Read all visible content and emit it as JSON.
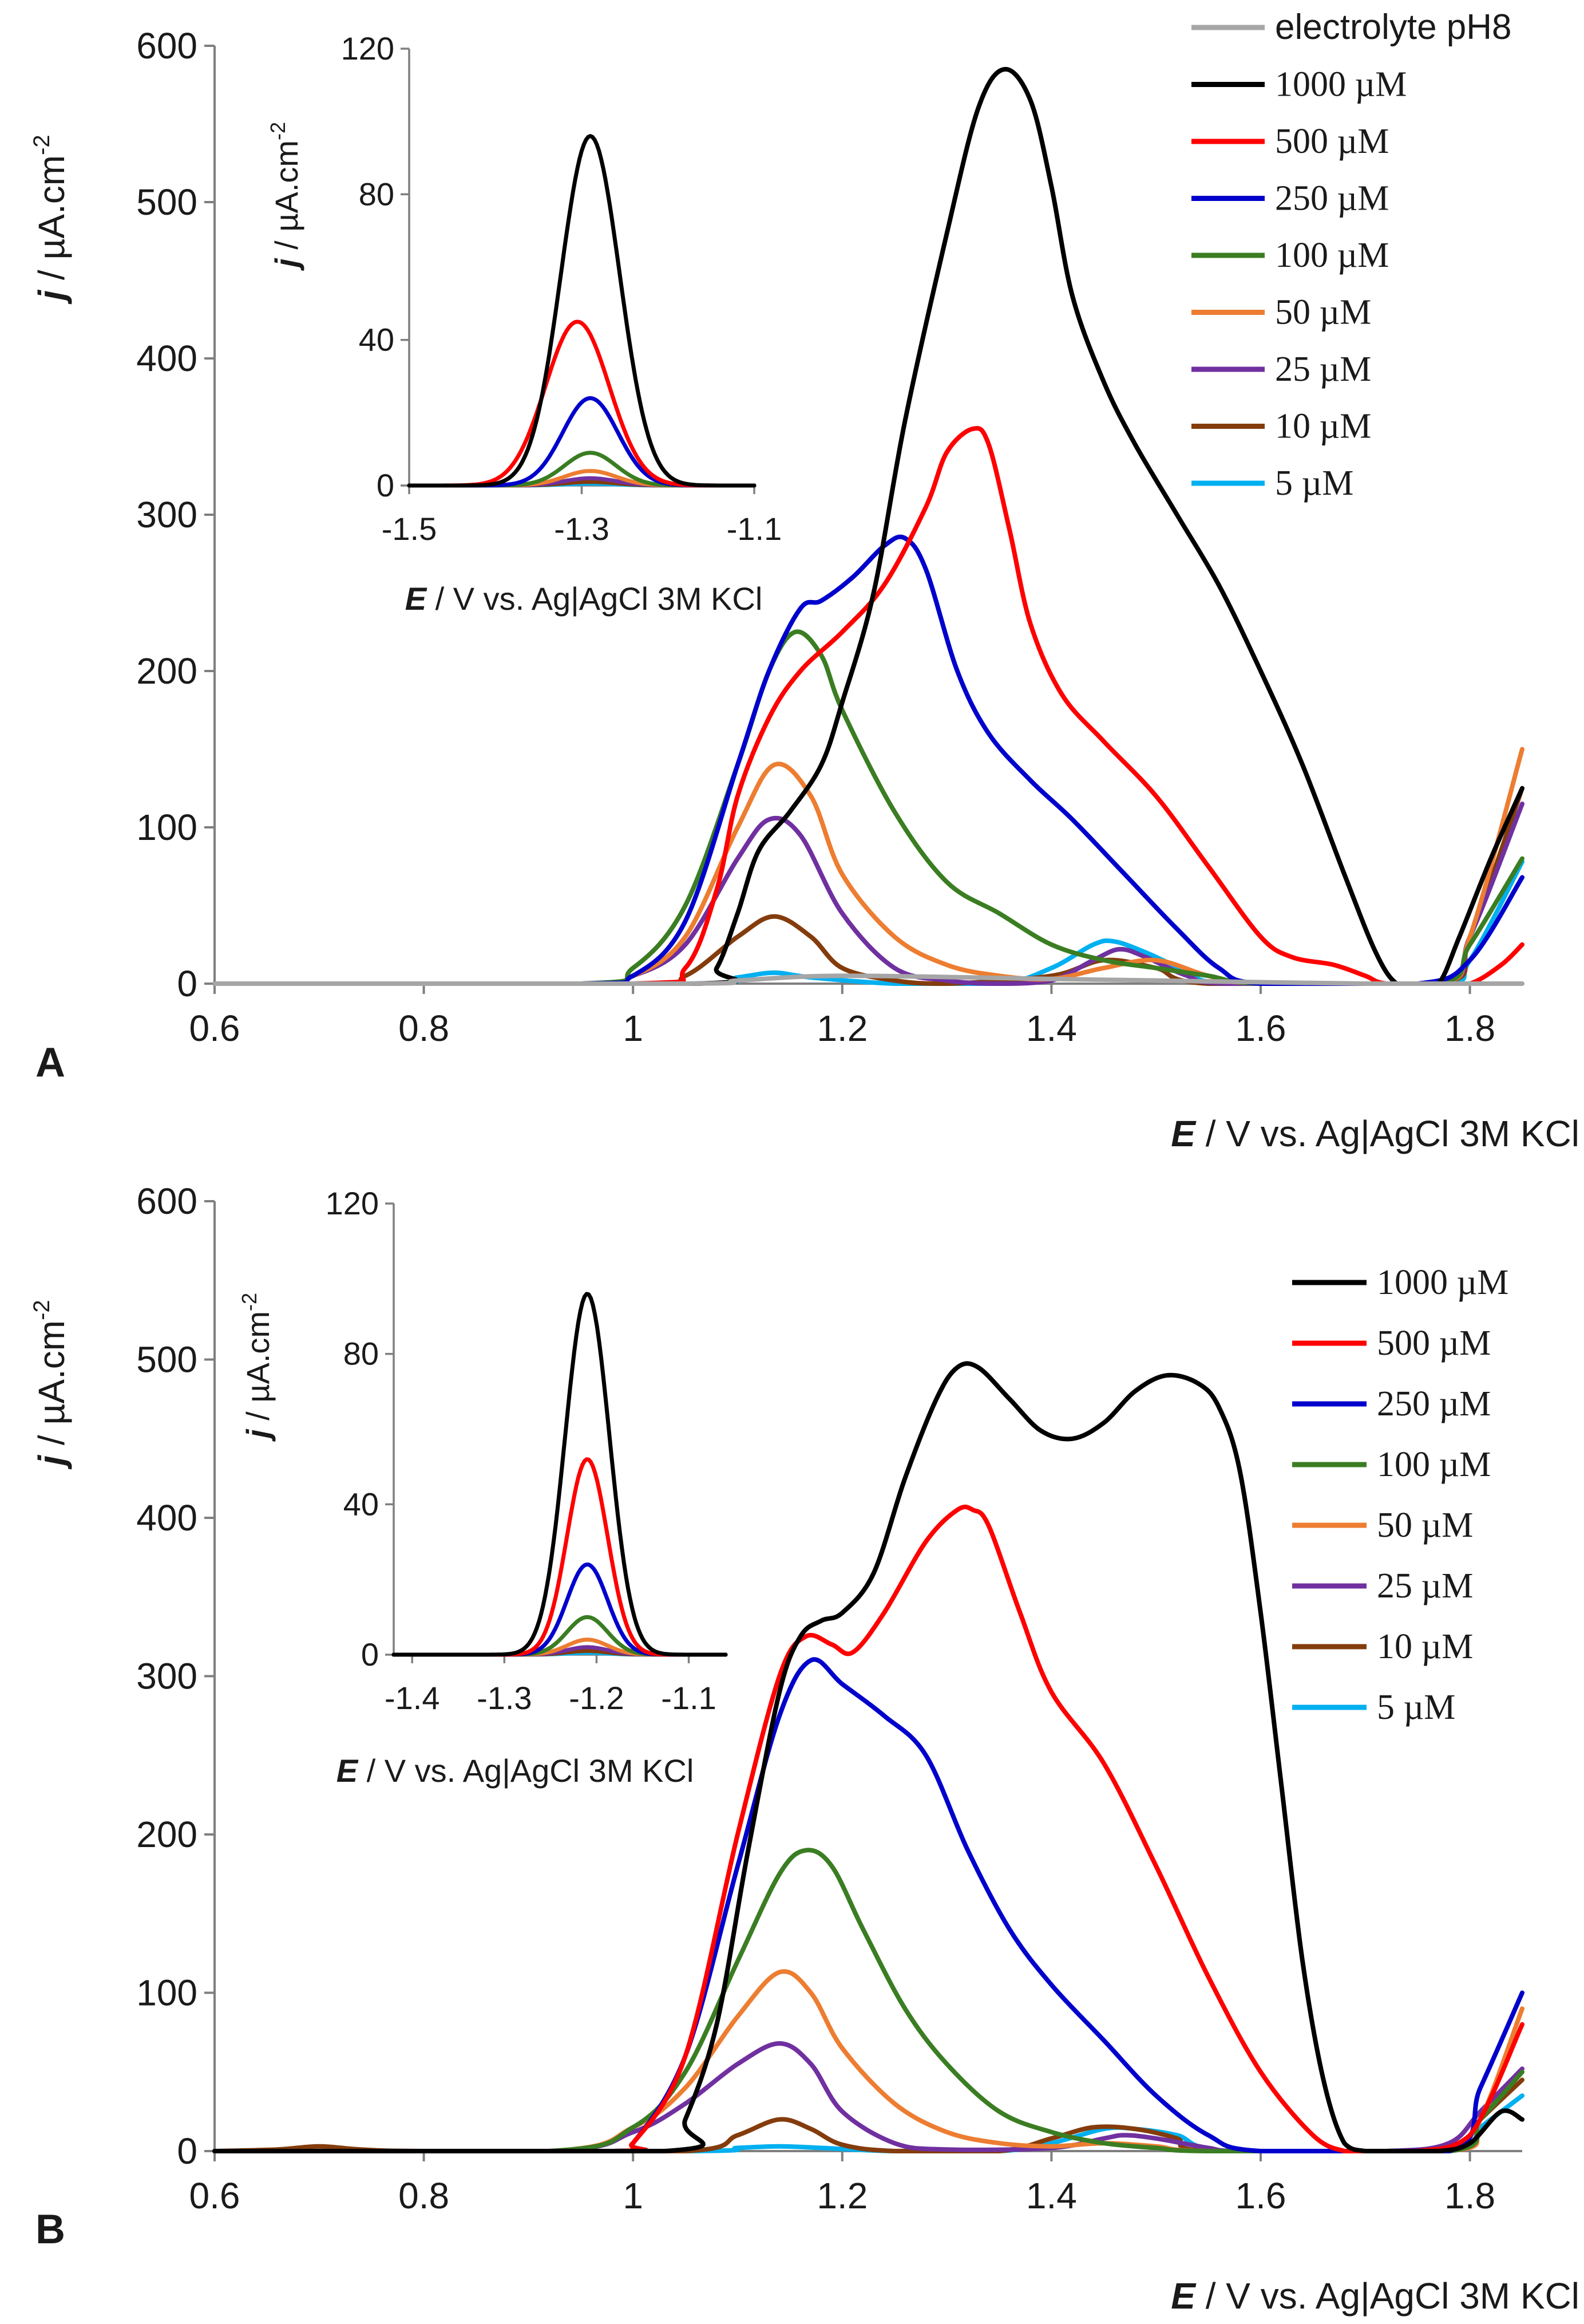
{
  "chart_data": [
    {
      "panel": "A",
      "type": "line",
      "xlabel_emph": "E",
      "xlabel_rest": " / V vs. Ag|AgCl 3M KCl",
      "ylabel_emph": "j",
      "ylabel_rest": " / µA.cm",
      "ylabel_sup": "-2",
      "xlim": [
        0.6,
        1.85
      ],
      "ylim": [
        0,
        600
      ],
      "xticks": [
        "0.6",
        "0.8",
        "1",
        "1.2",
        "1.4",
        "1.6",
        "1.8"
      ],
      "yticks": [
        "0",
        "100",
        "200",
        "300",
        "400",
        "500",
        "600"
      ],
      "legend_labels": [
        "electrolyte pH8",
        "1000 µM",
        "500 µM",
        "250 µM",
        "100 µM",
        "50 µM",
        "25 µM",
        "10 µM",
        "5 µM"
      ],
      "series": [
        {
          "name": "electrolyte pH8",
          "color": "#a6a6a6",
          "x": [
            0.6,
            1.05,
            1.1,
            1.2,
            1.4,
            1.5,
            1.7,
            1.85
          ],
          "y": [
            0,
            0,
            2,
            5,
            3,
            2,
            0,
            0
          ]
        },
        {
          "name": "1000 µM",
          "color": "#000000",
          "x": [
            0.6,
            1.06,
            1.08,
            1.1,
            1.12,
            1.15,
            1.18,
            1.2,
            1.23,
            1.26,
            1.3,
            1.33,
            1.355,
            1.38,
            1.4,
            1.42,
            1.45,
            1.48,
            1.52,
            1.56,
            1.6,
            1.64,
            1.68,
            1.71,
            1.73,
            1.75,
            1.77,
            1.79,
            1.82,
            1.85
          ],
          "y": [
            0,
            0,
            10,
            45,
            85,
            110,
            140,
            180,
            250,
            360,
            480,
            560,
            585,
            565,
            510,
            440,
            385,
            345,
            300,
            255,
            200,
            140,
            70,
            20,
            0,
            0,
            0,
            30,
            80,
            125
          ]
        },
        {
          "name": "500 µM",
          "color": "#ff0000",
          "x": [
            0.6,
            1.0,
            1.05,
            1.08,
            1.1,
            1.13,
            1.16,
            1.2,
            1.24,
            1.28,
            1.3,
            1.325,
            1.34,
            1.36,
            1.38,
            1.41,
            1.45,
            1.5,
            1.55,
            1.6,
            1.63,
            1.67,
            1.7,
            1.72,
            1.77,
            1.8,
            1.83,
            1.85
          ],
          "y": [
            0,
            0,
            10,
            60,
            120,
            170,
            200,
            225,
            255,
            305,
            340,
            355,
            345,
            290,
            230,
            185,
            155,
            120,
            75,
            30,
            17,
            12,
            5,
            0,
            0,
            0,
            12,
            25
          ]
        },
        {
          "name": "250 µM",
          "color": "#0000cc",
          "x": [
            0.6,
            0.95,
            1.0,
            1.05,
            1.1,
            1.13,
            1.16,
            1.18,
            1.21,
            1.24,
            1.26,
            1.28,
            1.31,
            1.34,
            1.38,
            1.42,
            1.47,
            1.52,
            1.56,
            1.6,
            1.75,
            1.8,
            1.85
          ],
          "y": [
            0,
            0,
            5,
            40,
            140,
            200,
            240,
            245,
            260,
            280,
            285,
            265,
            200,
            160,
            130,
            105,
            70,
            35,
            10,
            0,
            0,
            15,
            68
          ]
        },
        {
          "name": "100 µM",
          "color": "#3a7d22",
          "x": [
            0.6,
            0.95,
            1.0,
            1.05,
            1.1,
            1.13,
            1.155,
            1.18,
            1.2,
            1.25,
            1.3,
            1.35,
            1.4,
            1.45,
            1.5,
            1.55,
            1.6,
            1.77,
            1.8,
            1.85
          ],
          "y": [
            0,
            0,
            10,
            50,
            140,
            200,
            225,
            210,
            175,
            110,
            65,
            45,
            25,
            15,
            10,
            5,
            0,
            0,
            25,
            80
          ]
        },
        {
          "name": "50 µM",
          "color": "#ed7d31",
          "x": [
            0.6,
            0.95,
            1.0,
            1.05,
            1.1,
            1.135,
            1.17,
            1.2,
            1.25,
            1.3,
            1.35,
            1.4,
            1.45,
            1.5,
            1.55,
            1.6,
            1.77,
            1.8,
            1.85
          ],
          "y": [
            0,
            0,
            5,
            30,
            100,
            140,
            120,
            70,
            30,
            12,
            5,
            3,
            10,
            15,
            5,
            0,
            0,
            30,
            150
          ]
        },
        {
          "name": "25 µM",
          "color": "#7030a0",
          "x": [
            0.6,
            0.95,
            1.0,
            1.05,
            1.1,
            1.13,
            1.16,
            1.2,
            1.25,
            1.3,
            1.35,
            1.4,
            1.44,
            1.465,
            1.49,
            1.53,
            1.57,
            1.77,
            1.8,
            1.85
          ],
          "y": [
            0,
            0,
            5,
            25,
            80,
            105,
            95,
            45,
            10,
            2,
            0,
            2,
            15,
            22,
            17,
            5,
            0,
            0,
            30,
            115
          ]
        },
        {
          "name": "10 µM",
          "color": "#843c0c",
          "x": [
            0.6,
            1.0,
            1.05,
            1.1,
            1.135,
            1.17,
            1.2,
            1.25,
            1.3,
            1.4,
            1.45,
            1.5,
            1.55,
            1.77,
            1.8,
            1.85
          ],
          "y": [
            0,
            0,
            5,
            30,
            43,
            30,
            10,
            2,
            0,
            5,
            15,
            10,
            0,
            0,
            30,
            125
          ]
        },
        {
          "name": "5 µM",
          "color": "#00b0f0",
          "x": [
            0.6,
            1.05,
            1.1,
            1.135,
            1.17,
            1.25,
            1.35,
            1.4,
            1.44,
            1.46,
            1.49,
            1.53,
            1.57,
            1.77,
            1.8,
            1.85
          ],
          "y": [
            0,
            0,
            4,
            7,
            4,
            0,
            0,
            10,
            25,
            27,
            20,
            8,
            0,
            0,
            15,
            78
          ]
        }
      ],
      "inset": {
        "xlabel_emph": "E",
        "xlabel_rest": " / V vs. Ag|AgCl 3M KCl",
        "ylabel_emph": "j",
        "ylabel_rest": " / µA.cm",
        "ylabel_sup": "-2",
        "xlim": [
          -1.5,
          -1.1
        ],
        "ylim": [
          0,
          120
        ],
        "xticks": [
          "-1.5",
          "-1.3",
          "-1.1"
        ],
        "yticks": [
          "0",
          "40",
          "80",
          "120"
        ],
        "series": [
          {
            "name": "1000 µM",
            "color": "#000000",
            "center": -1.29,
            "sigma": 0.034,
            "peak": 96
          },
          {
            "name": "500 µM",
            "color": "#ff0000",
            "center": -1.305,
            "sigma": 0.037,
            "peak": 45
          },
          {
            "name": "250 µM",
            "color": "#0000cc",
            "center": -1.29,
            "sigma": 0.032,
            "peak": 24
          },
          {
            "name": "100 µM",
            "color": "#3a7d22",
            "center": -1.29,
            "sigma": 0.03,
            "peak": 9
          },
          {
            "name": "50 µM",
            "color": "#ed7d31",
            "center": -1.29,
            "sigma": 0.03,
            "peak": 4
          },
          {
            "name": "25 µM",
            "color": "#7030a0",
            "center": -1.29,
            "sigma": 0.03,
            "peak": 2
          },
          {
            "name": "10 µM",
            "color": "#843c0c",
            "center": -1.29,
            "sigma": 0.03,
            "peak": 1
          },
          {
            "name": "5 µM",
            "color": "#00b0f0",
            "center": -1.29,
            "sigma": 0.03,
            "peak": 0.5
          }
        ]
      }
    },
    {
      "panel": "B",
      "type": "line",
      "xlabel_emph": "E",
      "xlabel_rest": " / V vs. Ag|AgCl 3M KCl",
      "ylabel_emph": "j",
      "ylabel_rest": " / µA.cm",
      "ylabel_sup": "-2",
      "xlim": [
        0.6,
        1.85
      ],
      "ylim": [
        0,
        600
      ],
      "xticks": [
        "0.6",
        "0.8",
        "1",
        "1.2",
        "1.4",
        "1.6",
        "1.8"
      ],
      "yticks": [
        "0",
        "100",
        "200",
        "300",
        "400",
        "500",
        "600"
      ],
      "legend_labels": [
        "1000 µM",
        "500 µM",
        "250 µM",
        "100 µM",
        "50 µM",
        "25 µM",
        "10 µM",
        "5 µM"
      ],
      "series": [
        {
          "name": "1000 µM",
          "color": "#000000",
          "x": [
            0.6,
            1.03,
            1.05,
            1.08,
            1.11,
            1.14,
            1.16,
            1.18,
            1.2,
            1.23,
            1.26,
            1.29,
            1.31,
            1.33,
            1.36,
            1.39,
            1.42,
            1.45,
            1.48,
            1.51,
            1.54,
            1.56,
            1.58,
            1.6,
            1.62,
            1.64,
            1.66,
            1.68,
            1.7,
            1.72,
            1.77,
            1.8,
            1.83,
            1.85
          ],
          "y": [
            0,
            0,
            20,
            80,
            190,
            290,
            325,
            335,
            340,
            365,
            425,
            475,
            495,
            495,
            475,
            455,
            450,
            460,
            480,
            490,
            485,
            470,
            430,
            340,
            230,
            120,
            45,
            5,
            0,
            0,
            0,
            5,
            25,
            20
          ]
        },
        {
          "name": "500 µM",
          "color": "#ff0000",
          "x": [
            0.6,
            0.98,
            1.0,
            1.05,
            1.1,
            1.14,
            1.165,
            1.19,
            1.21,
            1.24,
            1.28,
            1.31,
            1.325,
            1.34,
            1.37,
            1.4,
            1.45,
            1.5,
            1.55,
            1.6,
            1.65,
            1.68,
            1.7,
            1.75,
            1.8,
            1.85
          ],
          "y": [
            0,
            0,
            5,
            60,
            200,
            300,
            325,
            320,
            315,
            340,
            385,
            405,
            405,
            395,
            340,
            290,
            245,
            180,
            110,
            50,
            10,
            0,
            0,
            0,
            10,
            80
          ]
        },
        {
          "name": "250 µM",
          "color": "#0000cc",
          "x": [
            0.6,
            0.98,
            1.0,
            1.05,
            1.1,
            1.14,
            1.17,
            1.2,
            1.24,
            1.28,
            1.32,
            1.36,
            1.4,
            1.45,
            1.5,
            1.55,
            1.6,
            1.78,
            1.81,
            1.85
          ],
          "y": [
            0,
            0,
            5,
            60,
            180,
            275,
            310,
            295,
            275,
            250,
            190,
            140,
            105,
            70,
            35,
            10,
            0,
            0,
            40,
            100
          ]
        },
        {
          "name": "100 µM",
          "color": "#3a7d22",
          "x": [
            0.6,
            0.92,
            1.0,
            1.05,
            1.1,
            1.14,
            1.165,
            1.19,
            1.22,
            1.26,
            1.3,
            1.35,
            1.4,
            1.45,
            1.5,
            1.55,
            1.78,
            1.81,
            1.85
          ],
          "y": [
            0,
            0,
            15,
            50,
            120,
            175,
            190,
            180,
            140,
            90,
            55,
            25,
            12,
            5,
            2,
            0,
            0,
            20,
            50
          ]
        },
        {
          "name": "50 µM",
          "color": "#ed7d31",
          "x": [
            0.6,
            0.92,
            1.0,
            1.05,
            1.1,
            1.14,
            1.17,
            1.2,
            1.25,
            1.3,
            1.35,
            1.4,
            1.45,
            1.5,
            1.55,
            1.78,
            1.81,
            1.85
          ],
          "y": [
            0,
            0,
            15,
            40,
            85,
            113,
            100,
            65,
            30,
            12,
            5,
            3,
            5,
            3,
            0,
            0,
            20,
            90
          ]
        },
        {
          "name": "25 µM",
          "color": "#7030a0",
          "x": [
            0.6,
            0.92,
            1.0,
            1.05,
            1.1,
            1.14,
            1.17,
            1.2,
            1.25,
            1.3,
            1.4,
            1.45,
            1.47,
            1.5,
            1.55,
            1.58,
            1.72,
            1.78,
            1.81,
            1.85
          ],
          "y": [
            0,
            0,
            12,
            30,
            55,
            68,
            55,
            25,
            5,
            1,
            2,
            8,
            10,
            8,
            2,
            0,
            0,
            5,
            25,
            52
          ]
        },
        {
          "name": "10 µM",
          "color": "#843c0c",
          "x": [
            0.6,
            0.66,
            0.7,
            0.74,
            0.8,
            1.05,
            1.1,
            1.14,
            1.17,
            1.2,
            1.25,
            1.35,
            1.4,
            1.44,
            1.48,
            1.52,
            1.55,
            1.78,
            1.81,
            1.85
          ],
          "y": [
            0,
            1,
            3,
            1,
            0,
            0,
            10,
            20,
            14,
            4,
            0,
            0,
            8,
            15,
            14,
            8,
            0,
            0,
            20,
            45
          ]
        },
        {
          "name": "5 µM",
          "color": "#00b0f0",
          "x": [
            0.6,
            1.05,
            1.1,
            1.14,
            1.18,
            1.25,
            1.35,
            1.4,
            1.45,
            1.48,
            1.52,
            1.57,
            1.78,
            1.81,
            1.85
          ],
          "y": [
            0,
            0,
            2,
            3,
            2,
            0,
            0,
            5,
            14,
            14,
            10,
            0,
            0,
            15,
            35
          ]
        }
      ],
      "inset": {
        "xlabel_emph": "E",
        "xlabel_rest": " / V vs. Ag|AgCl 3M KCl",
        "ylabel_emph": "j",
        "ylabel_rest": " / µA.cm",
        "ylabel_sup": "-2",
        "xlim": [
          -1.42,
          -1.06
        ],
        "ylim": [
          0,
          120
        ],
        "xticks": [
          "-1.4",
          "-1.3",
          "-1.2",
          "-1.1"
        ],
        "yticks": [
          "0",
          "40",
          "80",
          "120"
        ],
        "series": [
          {
            "name": "1000 µM",
            "color": "#000000",
            "center": -1.21,
            "sigma": 0.024,
            "peak": 96
          },
          {
            "name": "500 µM",
            "color": "#ff0000",
            "center": -1.21,
            "sigma": 0.022,
            "peak": 52
          },
          {
            "name": "250 µM",
            "color": "#0000cc",
            "center": -1.21,
            "sigma": 0.022,
            "peak": 24
          },
          {
            "name": "100 µM",
            "color": "#3a7d22",
            "center": -1.21,
            "sigma": 0.022,
            "peak": 10
          },
          {
            "name": "50 µM",
            "color": "#ed7d31",
            "center": -1.21,
            "sigma": 0.022,
            "peak": 4
          },
          {
            "name": "25 µM",
            "color": "#7030a0",
            "center": -1.21,
            "sigma": 0.022,
            "peak": 2
          },
          {
            "name": "10 µM",
            "color": "#843c0c",
            "center": -1.21,
            "sigma": 0.022,
            "peak": 1
          },
          {
            "name": "5 µM",
            "color": "#00b0f0",
            "center": -1.21,
            "sigma": 0.022,
            "peak": 0.5
          }
        ]
      }
    }
  ]
}
